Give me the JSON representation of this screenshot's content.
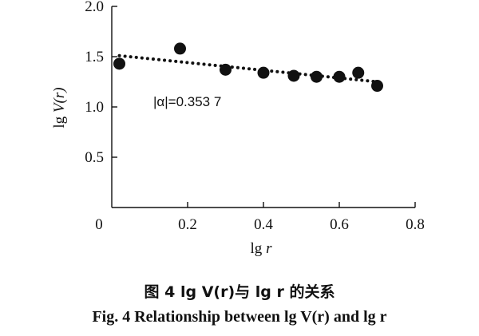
{
  "chart_data": {
    "type": "scatter",
    "xlabel": "lg r",
    "ylabel": "lg V(r)",
    "xlim": [
      0,
      0.8
    ],
    "ylim": [
      0,
      2.0
    ],
    "x_ticks": [
      "0",
      "0.2",
      "0.4",
      "0.6",
      "0.8"
    ],
    "y_ticks": [
      "0.5",
      "1.0",
      "1.5",
      "2.0"
    ],
    "x_tick_values": [
      0,
      0.2,
      0.4,
      0.6,
      0.8
    ],
    "y_tick_values": [
      0.5,
      1.0,
      1.5,
      2.0
    ],
    "grid": false,
    "series": [
      {
        "points": [
          {
            "x": 0.02,
            "y": 1.43
          },
          {
            "x": 0.18,
            "y": 1.58
          },
          {
            "x": 0.3,
            "y": 1.37
          },
          {
            "x": 0.4,
            "y": 1.34
          },
          {
            "x": 0.48,
            "y": 1.31
          },
          {
            "x": 0.54,
            "y": 1.3
          },
          {
            "x": 0.6,
            "y": 1.3
          },
          {
            "x": 0.65,
            "y": 1.34
          },
          {
            "x": 0.7,
            "y": 1.21
          }
        ]
      }
    ],
    "fit_line": {
      "x": [
        0.02,
        0.7
      ],
      "y": [
        1.51,
        1.25
      ]
    },
    "annotation": "|α|=0.353 7",
    "marker_color": "#111111",
    "line_style": "dotted"
  },
  "caption": {
    "cn": "图 4   lg V(r)与 lg r 的关系",
    "en": "Fig. 4    Relationship between lg V(r) and lg r"
  }
}
